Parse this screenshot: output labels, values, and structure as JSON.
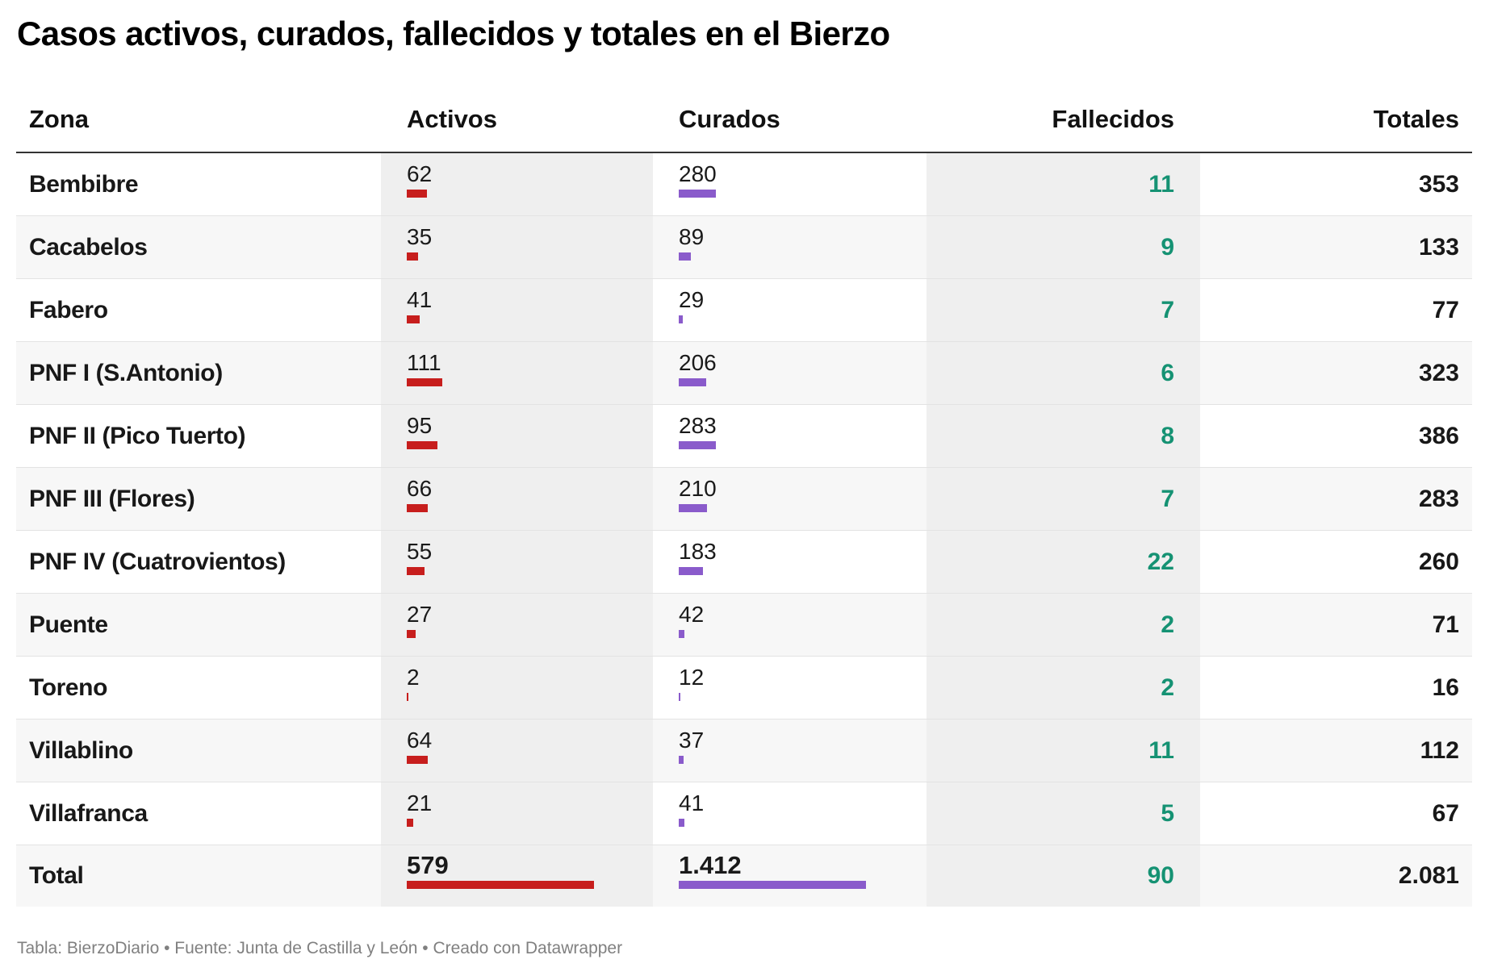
{
  "title": "Casos activos, curados, fallecidos y totales en el Bierzo",
  "footer": "Tabla: BierzoDiario • Fuente: Junta de Castilla y León • Creado con Datawrapper",
  "colors": {
    "activos_bar": "#c71e1d",
    "curados_bar": "#8a5bcb",
    "fallecidos_text": "#159273"
  },
  "chart_data": {
    "type": "table",
    "title": "Casos activos, curados, fallecidos y totales en el Bierzo",
    "columns": [
      "Zona",
      "Activos",
      "Curados",
      "Fallecidos",
      "Totales"
    ],
    "bar_max": {
      "activos": 579,
      "curados": 1412
    },
    "rows": [
      {
        "zona": "Bembibre",
        "activos": 62,
        "activos_label": "62",
        "curados": 280,
        "curados_label": "280",
        "fallecidos": "11",
        "totales": "353"
      },
      {
        "zona": "Cacabelos",
        "activos": 35,
        "activos_label": "35",
        "curados": 89,
        "curados_label": "89",
        "fallecidos": "9",
        "totales": "133"
      },
      {
        "zona": "Fabero",
        "activos": 41,
        "activos_label": "41",
        "curados": 29,
        "curados_label": "29",
        "fallecidos": "7",
        "totales": "77"
      },
      {
        "zona": "PNF I (S.Antonio)",
        "activos": 111,
        "activos_label": "111",
        "curados": 206,
        "curados_label": "206",
        "fallecidos": "6",
        "totales": "323"
      },
      {
        "zona": "PNF II (Pico Tuerto)",
        "activos": 95,
        "activos_label": "95",
        "curados": 283,
        "curados_label": "283",
        "fallecidos": "8",
        "totales": "386"
      },
      {
        "zona": "PNF III (Flores)",
        "activos": 66,
        "activos_label": "66",
        "curados": 210,
        "curados_label": "210",
        "fallecidos": "7",
        "totales": "283"
      },
      {
        "zona": "PNF IV (Cuatrovientos)",
        "activos": 55,
        "activos_label": "55",
        "curados": 183,
        "curados_label": "183",
        "fallecidos": "22",
        "totales": "260"
      },
      {
        "zona": "Puente",
        "activos": 27,
        "activos_label": "27",
        "curados": 42,
        "curados_label": "42",
        "fallecidos": "2",
        "totales": "71"
      },
      {
        "zona": "Toreno",
        "activos": 2,
        "activos_label": "2",
        "curados": 12,
        "curados_label": "12",
        "fallecidos": "2",
        "totales": "16"
      },
      {
        "zona": "Villablino",
        "activos": 64,
        "activos_label": "64",
        "curados": 37,
        "curados_label": "37",
        "fallecidos": "11",
        "totales": "112"
      },
      {
        "zona": "Villafranca",
        "activos": 21,
        "activos_label": "21",
        "curados": 41,
        "curados_label": "41",
        "fallecidos": "5",
        "totales": "67"
      }
    ],
    "total": {
      "zona": "Total",
      "activos": 579,
      "activos_label": "579",
      "curados": 1412,
      "curados_label": "1.412",
      "fallecidos": "90",
      "totales": "2.081"
    }
  }
}
